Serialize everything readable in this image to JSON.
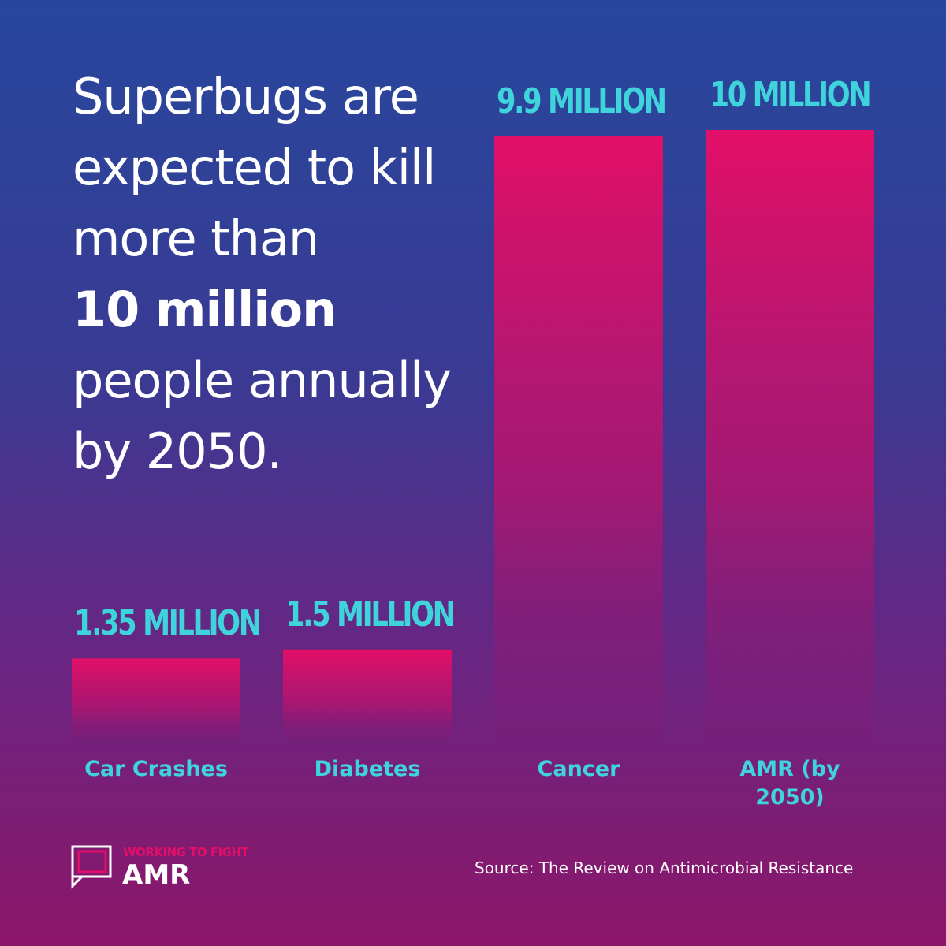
{
  "headline": {
    "lines": [
      "Superbugs are",
      "expected to kill",
      "more than",
      "10 million",
      "people annually",
      "by 2050."
    ]
  },
  "chart_data": {
    "type": "bar",
    "categories": [
      "Car Crashes",
      "Diabetes",
      "Cancer",
      "AMR (by 2050)"
    ],
    "values": [
      1.35,
      1.5,
      9.9,
      10
    ],
    "value_labels": [
      "1.35 MILLION",
      "1.5 MILLION",
      "9.9 MILLION",
      "10 MILLION"
    ],
    "color": "#e20f68",
    "label_color": "#3fd3dc"
  },
  "logo": {
    "tagline": "WORKING TO FIGHT",
    "name": "AMR"
  },
  "source": "Source: The Review on Antimicrobial Resistance"
}
